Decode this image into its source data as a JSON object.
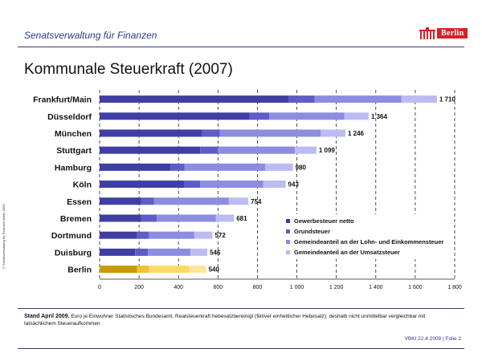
{
  "header": {
    "org_name": "Senatsverwaltung für Finanzen",
    "logo_text": "Berlin"
  },
  "chart_data": {
    "type": "bar",
    "stacked": true,
    "orientation": "horizontal",
    "title": "Kommunale Steuerkraft (2007)",
    "xlim": [
      0,
      1800
    ],
    "x_ticks": [
      0,
      200,
      400,
      600,
      800,
      1000,
      1200,
      1400,
      1600,
      1800
    ],
    "x_tick_labels": [
      "0",
      "200",
      "400",
      "600",
      "800",
      "1 000",
      "1 200",
      "1 400",
      "1 600",
      "1 800"
    ],
    "categories": [
      "Frankfurt/Main",
      "Düsseldorf",
      "München",
      "Stuttgart",
      "Hamburg",
      "Köln",
      "Essen",
      "Bremen",
      "Dortmund",
      "Duisburg",
      "Berlin"
    ],
    "total_labels": [
      "1 710",
      "1 364",
      "1 246",
      "1 099",
      "980",
      "943",
      "754",
      "681",
      "572",
      "546",
      "540"
    ],
    "series": [
      {
        "name": "Gewerbesteuer netto",
        "color": "#3f3fa3",
        "values": [
          960,
          760,
          520,
          510,
          360,
          430,
          210,
          210,
          190,
          180,
          190
        ]
      },
      {
        "name": "Grundsteuer",
        "color": "#5d5dc8",
        "values": [
          130,
          100,
          90,
          90,
          70,
          80,
          65,
          80,
          60,
          65,
          60
        ]
      },
      {
        "name": "Gemeindeanteil an der Lohn- und Einkommensteuer",
        "color": "#8c8ce0",
        "values": [
          440,
          380,
          510,
          390,
          410,
          320,
          380,
          300,
          230,
          215,
          205
        ]
      },
      {
        "name": "Gemeindeanteil an der Umsatzsteuer",
        "color": "#bcbcf2",
        "values": [
          180,
          124,
          126,
          109,
          140,
          113,
          99,
          91,
          92,
          86,
          85
        ]
      }
    ],
    "highlight": {
      "category": "Berlin",
      "colors": [
        "#c99a06",
        "#f1c232",
        "#ffd966",
        "#ffe699"
      ]
    },
    "legend_position": "bottom-right",
    "grid": "vertical dashed"
  },
  "footer": {
    "stand": "Stand April 2009.",
    "note": " Euro je Einwohner  Statistisches Bundesamt. Realsteuerkraft hebesatzbereinigt (fiktiver einheitlicher Hebesatz); deshalb nicht unmittelbar vergleichbar mit tatsächlichem Steueraufkommen",
    "slide_id": "VBKI 22.4.2009   |  Folie 2"
  },
  "copyright": "© Senatsverwaltung für Finanzen Berlin 2009"
}
